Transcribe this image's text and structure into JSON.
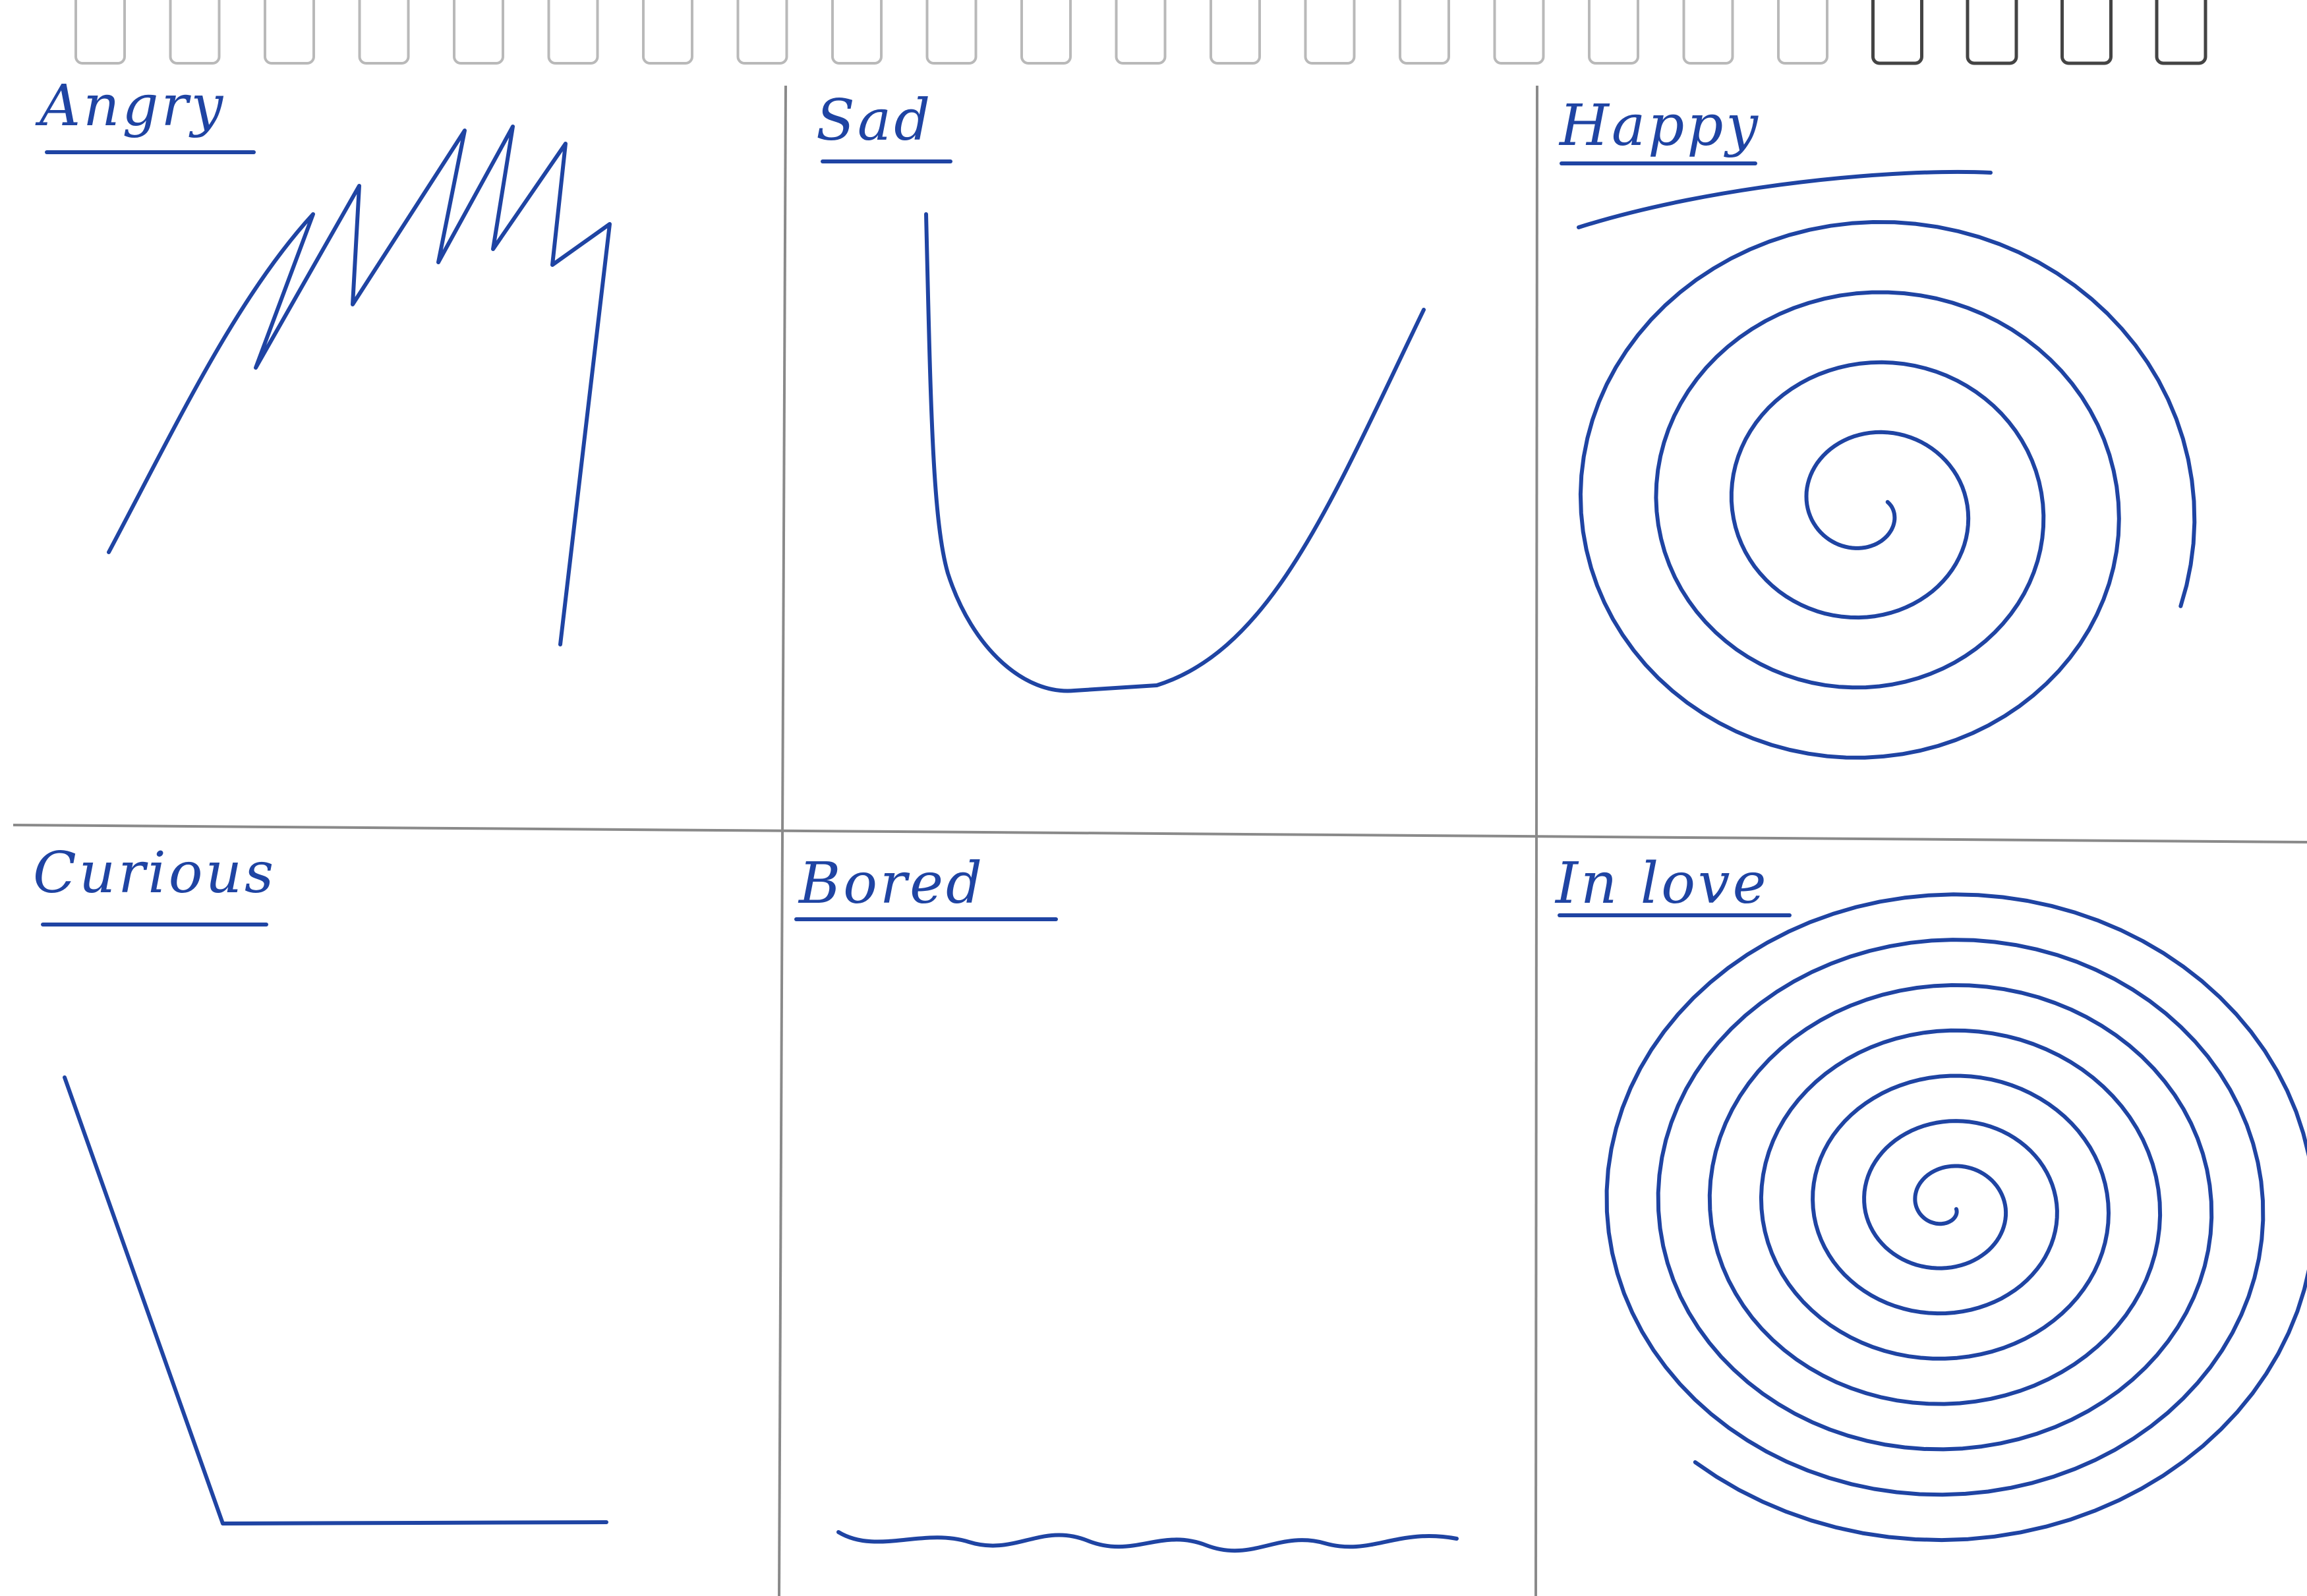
{
  "ink_color": "#1f44a3",
  "panels": [
    {
      "label": "Angry"
    },
    {
      "label": "Sad"
    },
    {
      "label": "Happy"
    },
    {
      "label": "Curious"
    },
    {
      "label": "Bored"
    },
    {
      "label": "In love"
    }
  ]
}
